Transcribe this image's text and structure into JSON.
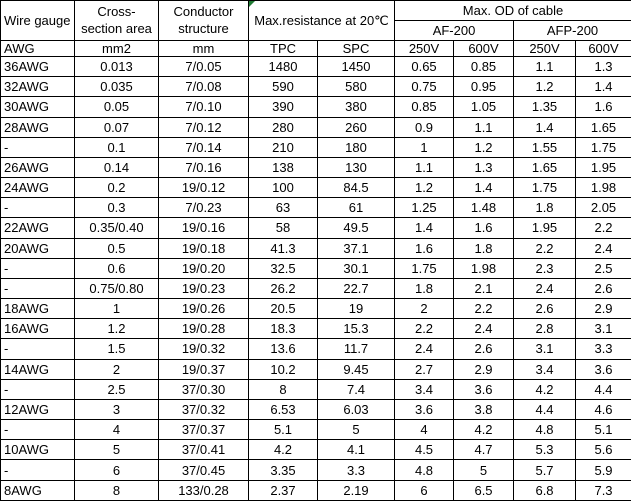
{
  "colors": {
    "border": "#000000",
    "background": "#ffffff",
    "text": "#000000",
    "error_indicator_green": "#1f7a33"
  },
  "header": {
    "wire_gauge": "Wire gauge",
    "cross_section_area": "Cross-\nsection area",
    "conductor_structure": "Conductor\nstructure",
    "max_resistance": "Max.resistance at 20℃",
    "max_od_of_cable": "Max. OD of cable",
    "af_200": "AF-200",
    "afp_200": "AFP-200"
  },
  "units": [
    "AWG",
    "mm2",
    "mm",
    "TPC",
    "SPC",
    "250V",
    "600V",
    "250V",
    "600V"
  ],
  "rows": [
    [
      "36AWG",
      "0.013",
      "7/0.05",
      "1480",
      "1450",
      "0.65",
      "0.85",
      "1.1",
      "1.3"
    ],
    [
      "32AWG",
      "0.035",
      "7/0.08",
      "590",
      "580",
      "0.75",
      "0.95",
      "1.2",
      "1.4"
    ],
    [
      "30AWG",
      "0.05",
      "7/0.10",
      "390",
      "380",
      "0.85",
      "1.05",
      "1.35",
      "1.6"
    ],
    [
      "28AWG",
      "0.07",
      "7/0.12",
      "280",
      "260",
      "0.9",
      "1.1",
      "1.4",
      "1.65"
    ],
    [
      "-",
      "0.1",
      "7/0.14",
      "210",
      "180",
      "1",
      "1.2",
      "1.55",
      "1.75"
    ],
    [
      "26AWG",
      "0.14",
      "7/0.16",
      "138",
      "130",
      "1.1",
      "1.3",
      "1.65",
      "1.95"
    ],
    [
      "24AWG",
      "0.2",
      "19/0.12",
      "100",
      "84.5",
      "1.2",
      "1.4",
      "1.75",
      "1.98"
    ],
    [
      "-",
      "0.3",
      "7/0.23",
      "63",
      "61",
      "1.25",
      "1.48",
      "1.8",
      "2.05"
    ],
    [
      "22AWG",
      "0.35/0.40",
      "19/0.16",
      "58",
      "49.5",
      "1.4",
      "1.6",
      "1.95",
      "2.2"
    ],
    [
      "20AWG",
      "0.5",
      "19/0.18",
      "41.3",
      "37.1",
      "1.6",
      "1.8",
      "2.2",
      "2.4"
    ],
    [
      "-",
      "0.6",
      "19/0.20",
      "32.5",
      "30.1",
      "1.75",
      "1.98",
      "2.3",
      "2.5"
    ],
    [
      "-",
      "0.75/0.80",
      "19/0.23",
      "26.2",
      "22.7",
      "1.8",
      "2.1",
      "2.4",
      "2.6"
    ],
    [
      "18AWG",
      "1",
      "19/0.26",
      "20.5",
      "19",
      "2",
      "2.2",
      "2.6",
      "2.9"
    ],
    [
      "16AWG",
      "1.2",
      "19/0.28",
      "18.3",
      "15.3",
      "2.2",
      "2.4",
      "2.8",
      "3.1"
    ],
    [
      "-",
      "1.5",
      "19/0.32",
      "13.6",
      "11.7",
      "2.4",
      "2.6",
      "3.1",
      "3.3"
    ],
    [
      "14AWG",
      "2",
      "19/0.37",
      "10.2",
      "9.45",
      "2.7",
      "2.9",
      "3.4",
      "3.6"
    ],
    [
      "-",
      "2.5",
      "37/0.30",
      "8",
      "7.4",
      "3.4",
      "3.6",
      "4.2",
      "4.4"
    ],
    [
      "12AWG",
      "3",
      "37/0.32",
      "6.53",
      "6.03",
      "3.6",
      "3.8",
      "4.4",
      "4.6"
    ],
    [
      "-",
      "4",
      "37/0.37",
      "5.1",
      "5",
      "4",
      "4.2",
      "4.8",
      "5.1"
    ],
    [
      "10AWG",
      "5",
      "37/0.41",
      "4.2",
      "4.1",
      "4.5",
      "4.7",
      "5.3",
      "5.6"
    ],
    [
      "-",
      "6",
      "37/0.45",
      "3.35",
      "3.3",
      "4.8",
      "5",
      "5.7",
      "5.9"
    ],
    [
      "8AWG",
      "8",
      "133/0.28",
      "2.37",
      "2.19",
      "6",
      "6.5",
      "6.8",
      "7.3"
    ]
  ]
}
